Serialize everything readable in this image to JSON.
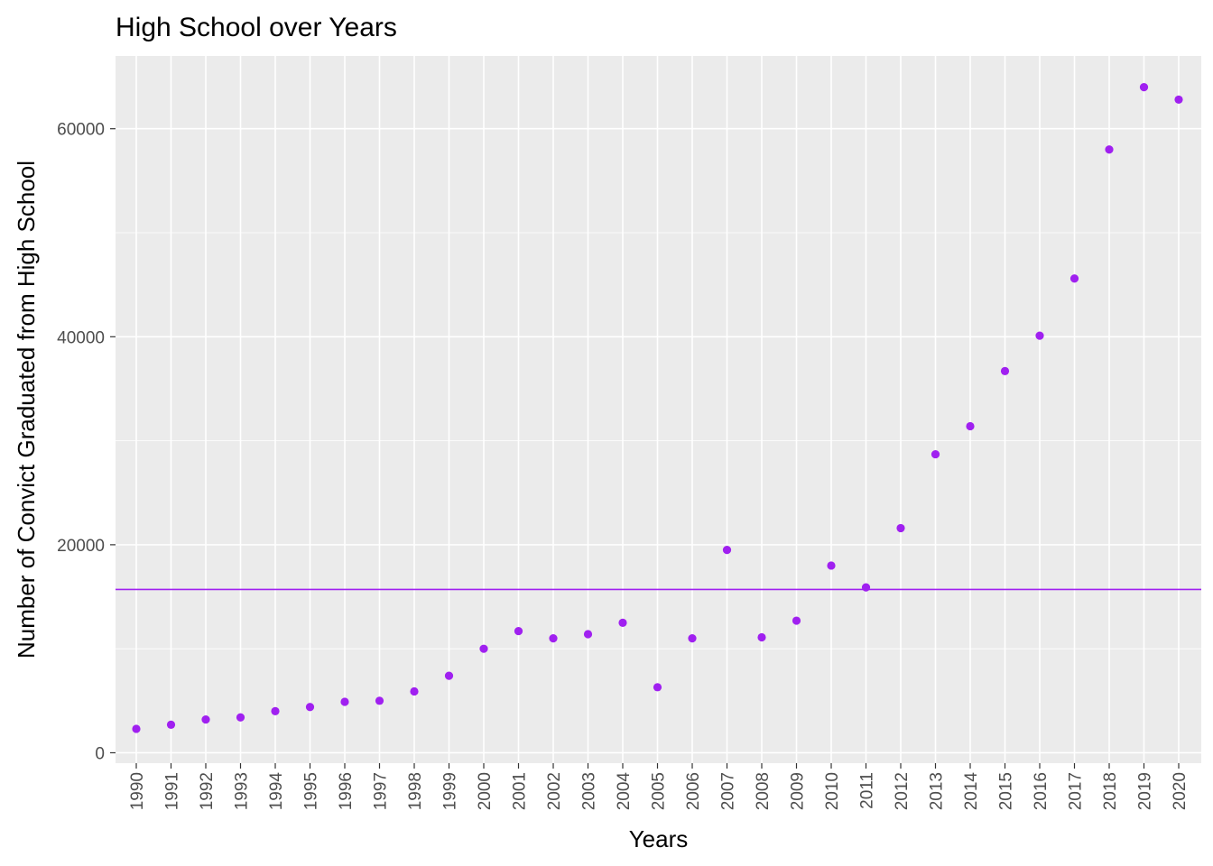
{
  "chart_data": {
    "type": "scatter",
    "title": "High School over Years",
    "xlabel": "Years",
    "ylabel": "Number of Convict Graduated from High School",
    "x": [
      "1990",
      "1991",
      "1992",
      "1993",
      "1994",
      "1995",
      "1996",
      "1997",
      "1998",
      "1999",
      "2000",
      "2001",
      "2002",
      "2003",
      "2004",
      "2005",
      "2006",
      "2007",
      "2008",
      "2009",
      "2010",
      "2011",
      "2012",
      "2013",
      "2014",
      "2015",
      "2016",
      "2017",
      "2018",
      "2019",
      "2020"
    ],
    "series": [
      {
        "values": [
          2300,
          2700,
          3200,
          3400,
          4000,
          4400,
          4900,
          5000,
          5900,
          7400,
          10000,
          11700,
          11000,
          11400,
          12500,
          6300,
          11000,
          19500,
          11100,
          12700,
          18000,
          15900,
          21600,
          28700,
          31400,
          36700,
          40100,
          45600,
          58000,
          64000,
          62800
        ]
      }
    ],
    "reference_line": {
      "y": 15700
    },
    "ylim": [
      -1000,
      67000
    ],
    "yticks": [
      "0",
      "20000",
      "40000",
      "60000"
    ],
    "ytick_values": [
      0,
      20000,
      40000,
      60000
    ],
    "grid": true,
    "colors": {
      "point": "#a020f0",
      "reference_line": "#a020f0",
      "panel_background": "#ebebeb",
      "grid": "#ffffff"
    }
  }
}
